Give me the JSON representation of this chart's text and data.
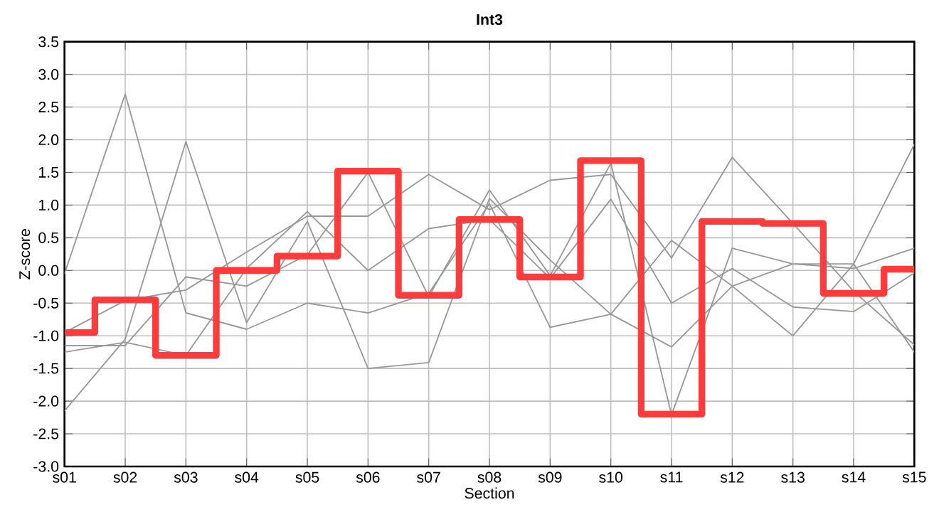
{
  "chart_data": {
    "type": "line",
    "title": "Int3",
    "xlabel": "Section",
    "ylabel": "Z-score",
    "categories": [
      "s01",
      "s02",
      "s03",
      "s04",
      "s05",
      "s06",
      "s07",
      "s08",
      "s09",
      "s10",
      "s11",
      "s12",
      "s13",
      "s14",
      "s15"
    ],
    "series": [
      {
        "color": "#999999",
        "values": [
          -0.05,
          2.7,
          -0.65,
          -0.9,
          -0.5,
          -0.65,
          -0.35,
          1.02,
          -0.87,
          -0.67,
          -1.17,
          -0.24,
          -1.0,
          0.1,
          -1.25
        ]
      },
      {
        "color": "#999999",
        "values": [
          -0.95,
          -0.46,
          -0.3,
          0.28,
          0.83,
          0.83,
          1.47,
          0.93,
          1.38,
          1.47,
          0.19,
          1.73,
          0.72,
          -0.32,
          -1.14
        ]
      },
      {
        "color": "#999999",
        "values": [
          -1.15,
          -1.15,
          -0.1,
          -0.24,
          0.24,
          1.5,
          -0.4,
          1.23,
          -0.08,
          1.64,
          -2.21,
          0.34,
          0.1,
          0.03,
          0.34
        ]
      },
      {
        "color": "#999999",
        "values": [
          -1.25,
          -1.1,
          -1.3,
          0.03,
          0.9,
          0.0,
          0.64,
          0.78,
          -0.12,
          1.09,
          -0.5,
          0.03,
          -0.56,
          -0.63,
          -0.04
        ]
      },
      {
        "color": "#999999",
        "values": [
          -2.15,
          -1.05,
          1.97,
          -0.8,
          0.75,
          -1.5,
          -1.41,
          1.1,
          0.16,
          -0.67,
          0.46,
          -0.24,
          0.1,
          0.1,
          1.93
        ]
      },
      {
        "type": "step",
        "color": "#ff3b3b",
        "values": [
          -0.95,
          -0.45,
          -1.3,
          0.0,
          0.22,
          1.52,
          -0.38,
          0.78,
          -0.1,
          1.68,
          -2.2,
          0.75,
          0.72,
          -0.35,
          0.02
        ]
      }
    ],
    "ylim": [
      -3.0,
      3.5
    ],
    "yticks": [
      {
        "value": -3.0,
        "label": "-3.0"
      },
      {
        "value": -2.5,
        "label": "-2.5"
      },
      {
        "value": -2.0,
        "label": "-2.0"
      },
      {
        "value": -1.5,
        "label": "-1.5"
      },
      {
        "value": -1.0,
        "label": "-1.0"
      },
      {
        "value": -0.5,
        "label": "-0.5"
      },
      {
        "value": 0,
        "label": "0.0"
      },
      {
        "value": 0.5,
        "label": "0.5"
      },
      {
        "value": 1.0,
        "label": "1.0"
      },
      {
        "value": 1.5,
        "label": "1.5"
      },
      {
        "value": 2.0,
        "label": "2.0"
      },
      {
        "value": 2.5,
        "label": "2.5"
      },
      {
        "value": 3.0,
        "label": "3.0"
      },
      {
        "value": 3.5,
        "label": "3.5"
      }
    ],
    "grid": true
  }
}
